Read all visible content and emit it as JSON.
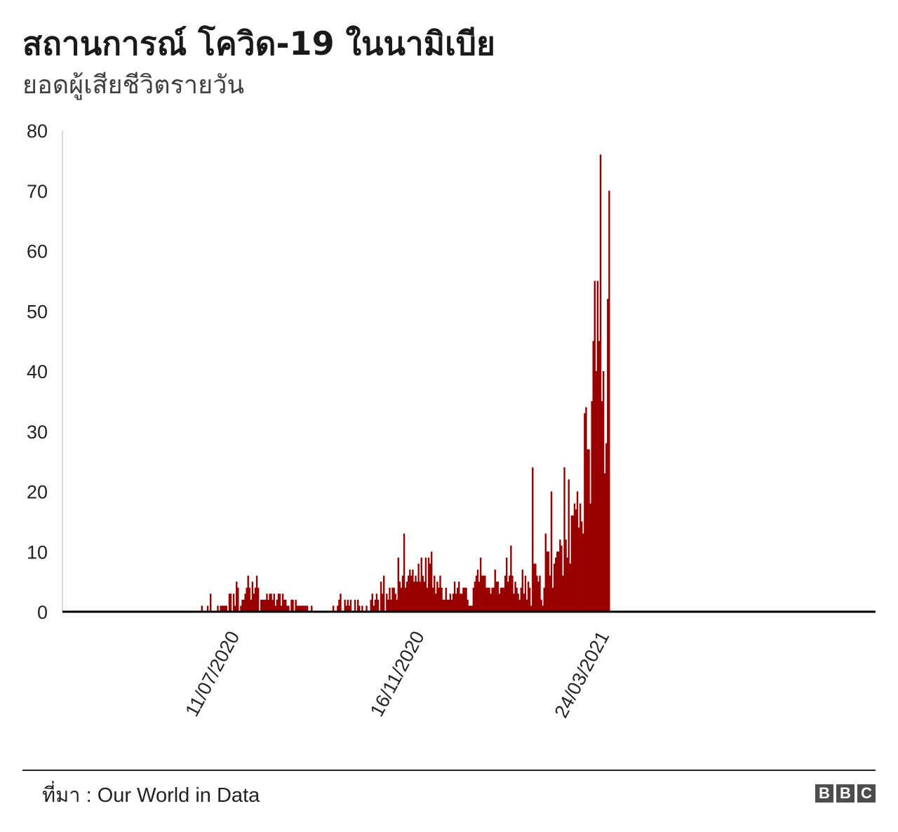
{
  "title": "สถานการณ์ โควิด-19 ในนามิเบีย",
  "subtitle": "ยอดผู้เสียชีวิตรายวัน",
  "source": {
    "label": "ที่มา",
    "separator": " : ",
    "value": "Our World in Data"
  },
  "logo": {
    "letters": [
      "B",
      "B",
      "C"
    ]
  },
  "colors": {
    "bar": "#990000",
    "axis": "#000000",
    "text": "#222222"
  },
  "chart_data": {
    "type": "bar",
    "title": "สถานการณ์ โควิด-19 ในนามิเบีย",
    "subtitle": "ยอดผู้เสียชีวิตรายวัน",
    "xlabel": "",
    "ylabel": "",
    "ylim": [
      0,
      80
    ],
    "yticks": [
      0,
      10,
      20,
      30,
      40,
      50,
      60,
      70,
      80
    ],
    "xlim": [
      "2020-03-13",
      "2021-09-27"
    ],
    "xticks": [
      {
        "date": "2020-07-11",
        "label": "11/07/2020"
      },
      {
        "date": "2020-11-16",
        "label": "16/11/2020"
      },
      {
        "date": "2021-03-24",
        "label": "24/03/2021"
      }
    ],
    "grid": false,
    "series": [
      {
        "start_date": "2020-06-17",
        "values": [
          1,
          0,
          0,
          0,
          1,
          0,
          3,
          0,
          0,
          0,
          0,
          1,
          0,
          1,
          1,
          1,
          1,
          1,
          0,
          3,
          3,
          0,
          3,
          1,
          5,
          4,
          0,
          1,
          2,
          2,
          3,
          4,
          6,
          4,
          2,
          5,
          3,
          4,
          6,
          4,
          0,
          2,
          2,
          2,
          2,
          3,
          2,
          3,
          3,
          2,
          3,
          1,
          2,
          3,
          3,
          1,
          3,
          2,
          2,
          1,
          1,
          0,
          2,
          2,
          0,
          2,
          1,
          1,
          1,
          1,
          1,
          1,
          1,
          1,
          0,
          0,
          1,
          0,
          0,
          0,
          0,
          0,
          0,
          0,
          0,
          0,
          0,
          0,
          0,
          0,
          0,
          1,
          0,
          0,
          1,
          2,
          3,
          0,
          0,
          2,
          1,
          2,
          1,
          2,
          0,
          0,
          2,
          0,
          2,
          1,
          0,
          1,
          0,
          0,
          1,
          0,
          0,
          2,
          3,
          1,
          2,
          3,
          2,
          0,
          5,
          3,
          6,
          0,
          3,
          2,
          4,
          2,
          4,
          4,
          3,
          2,
          9,
          5,
          4,
          6,
          13,
          4,
          5,
          6,
          7,
          6,
          7,
          5,
          6,
          5,
          8,
          5,
          9,
          6,
          5,
          9,
          4,
          9,
          8,
          10,
          4,
          6,
          3,
          5,
          4,
          6,
          4,
          2,
          2,
          4,
          2,
          2,
          3,
          2,
          3,
          5,
          3,
          4,
          5,
          3,
          3,
          4,
          4,
          4,
          2,
          1,
          1,
          1,
          4,
          5,
          6,
          7,
          5,
          9,
          6,
          6,
          6,
          4,
          4,
          4,
          3,
          4,
          4,
          7,
          5,
          5,
          3,
          4,
          4,
          4,
          6,
          9,
          5,
          6,
          11,
          6,
          3,
          5,
          4,
          3,
          2,
          4,
          7,
          3,
          6,
          2,
          5,
          4,
          1,
          24,
          8,
          8,
          6,
          5,
          6,
          2,
          1,
          4,
          13,
          10,
          10,
          6,
          20,
          4,
          8,
          9,
          10,
          10,
          12,
          11,
          6,
          24,
          12,
          9,
          22,
          8,
          16,
          16,
          18,
          17,
          20,
          14,
          18,
          15,
          13,
          33,
          34,
          27,
          27,
          18,
          35,
          45,
          55,
          40,
          55,
          45,
          76,
          35,
          40,
          23,
          28,
          52,
          70
        ]
      }
    ]
  }
}
